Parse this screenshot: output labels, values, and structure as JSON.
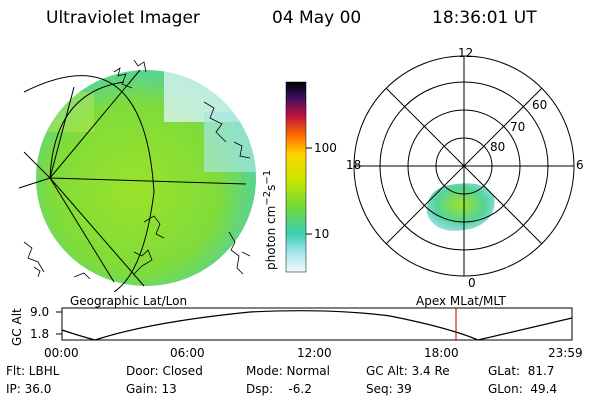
{
  "header": {
    "instrument": "Ultraviolet Imager",
    "date": "04 May 00",
    "time": "18:36:01 UT"
  },
  "colorbar": {
    "label": "photon cm",
    "exp1": "−2",
    "mid": "s",
    "exp2": "−1",
    "ticks": [
      {
        "label": "100",
        "value": 100
      },
      {
        "label": "10",
        "value": 10
      }
    ]
  },
  "left_panel": {
    "caption": "Geographic Lat/Lon"
  },
  "right_panel": {
    "caption": "Apex MLat/MLT",
    "mlt_labels": {
      "top": "12",
      "left": "18",
      "right": "6",
      "bottom": "0"
    },
    "lat_labels": [
      "60",
      "70",
      "80"
    ]
  },
  "orbit_plot": {
    "ylabel": "GC Alt",
    "yticks": [
      "9.0",
      "1.8"
    ],
    "xticks": [
      "00:00",
      "06:00",
      "12:00",
      "18:00",
      "23:59"
    ],
    "marker_color": "#b40000"
  },
  "info": {
    "flt": "Flt: LBHL",
    "ip": "IP: 36.0",
    "door": "Door: Closed",
    "gain": "Gain: 13",
    "mode": "Mode: Normal",
    "dsp": "Dsp:    -6.2",
    "gcalt": "GC Alt: 3.4 Re",
    "seq": "Seq: 39",
    "glat": "GLat:  81.7",
    "glon": "GLon:  49.4"
  }
}
